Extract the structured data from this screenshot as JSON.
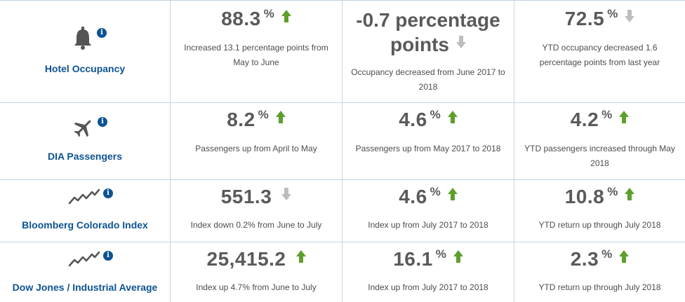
{
  "colors": {
    "accent": "#0d5393",
    "up": "#5e9f2c",
    "down": "#bdbdbd",
    "value": "#5a5a5a",
    "border": "#c5d4e1"
  },
  "rows": [
    {
      "label": "Hotel Occupancy",
      "icon": "bell-icon",
      "info": "i",
      "cells": [
        {
          "value": "88.3",
          "unit": "%",
          "trend": "up",
          "desc": "Increased 13.1 percentage points from May to June"
        },
        {
          "value": "-0.7 percentage points",
          "value_line1": "-0.7 percentage",
          "value_line2": "points",
          "unit": "",
          "trend": "down",
          "desc": "Occupancy decreased from June 2017 to 2018"
        },
        {
          "value": "72.5",
          "unit": "%",
          "trend": "down",
          "desc": "YTD occupancy decreased 1.6 percentage points from last year"
        }
      ]
    },
    {
      "label": "DIA Passengers",
      "icon": "airplane-icon",
      "info": "i",
      "cells": [
        {
          "value": "8.2",
          "unit": "%",
          "trend": "up",
          "desc": "Passengers up from April to May"
        },
        {
          "value": "4.6",
          "unit": "%",
          "trend": "up",
          "desc": "Passengers up from May 2017 to 2018"
        },
        {
          "value": "4.2",
          "unit": "%",
          "trend": "up",
          "desc": "YTD passengers increased through May 2018"
        }
      ]
    },
    {
      "label": "Bloomberg Colorado Index",
      "icon": "trend-line-icon",
      "info": "i",
      "cells": [
        {
          "value": "551.3",
          "unit": "",
          "trend": "down",
          "desc": "Index down 0.2% from June to July"
        },
        {
          "value": "4.6",
          "unit": "%",
          "trend": "up",
          "desc": "Index up from July 2017 to 2018"
        },
        {
          "value": "10.8",
          "unit": "%",
          "trend": "up",
          "desc": "YTD return up through July 2018"
        }
      ]
    },
    {
      "label": "Dow Jones / Industrial Average",
      "icon": "trend-line-icon",
      "info": "i",
      "cells": [
        {
          "value": "25,415.2",
          "unit": "",
          "trend": "up",
          "desc": "Index up 4.7% from June to July"
        },
        {
          "value": "16.1",
          "unit": "%",
          "trend": "up",
          "desc": "Index up from July 2017 to 2018"
        },
        {
          "value": "2.3",
          "unit": "%",
          "trend": "up",
          "desc": "YTD return up through July 2018"
        }
      ]
    }
  ]
}
